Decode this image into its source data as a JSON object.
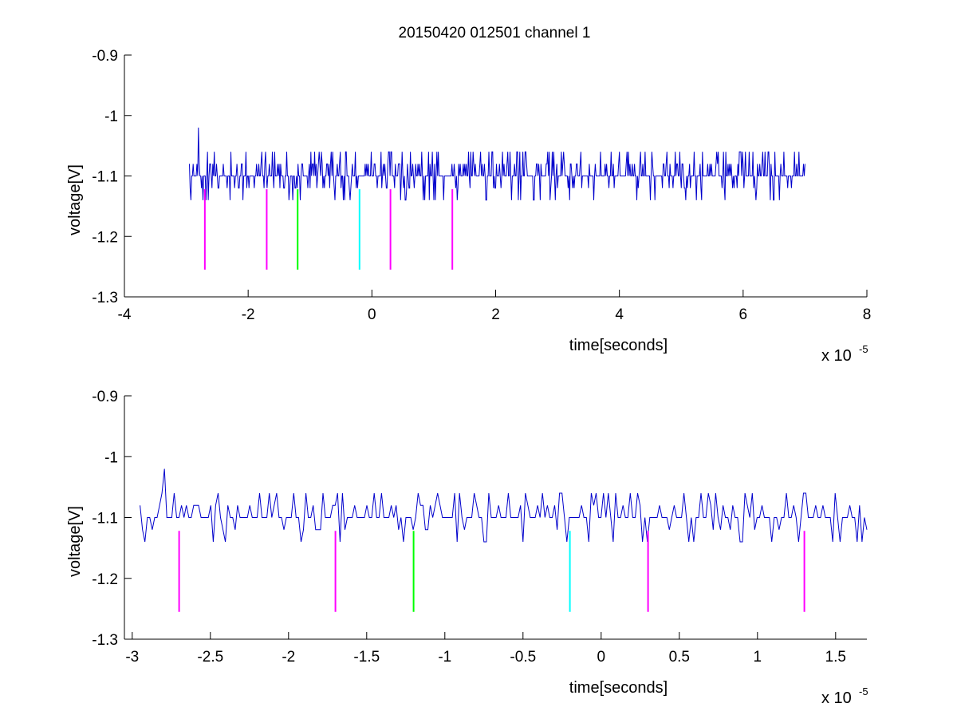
{
  "figure": {
    "title": "20150420 012501 channel 1"
  },
  "chart_data": [
    {
      "type": "line",
      "title": "20150420 012501 channel 1",
      "xlabel": "time[seconds]",
      "ylabel": "voltage[V]",
      "x_multiplier_label": "x 10",
      "x_multiplier_exponent": "-5",
      "xlim": [
        -4,
        8
      ],
      "ylim": [
        -1.3,
        -0.9
      ],
      "xticks": [
        -4,
        -2,
        0,
        2,
        4,
        6,
        8
      ],
      "xtick_labels": [
        "-4",
        "-2",
        "0",
        "2",
        "4",
        "6",
        "8"
      ],
      "yticks": [
        -0.9,
        -1,
        -1.1,
        -1.2,
        -1.3
      ],
      "ytick_labels": [
        "-0.9",
        "-1",
        "-1.1",
        "-1.2",
        "-1.3"
      ],
      "signal": {
        "color": "#0000cc",
        "x_range": [
          -2.95,
          7.0
        ],
        "baseline": -1.1,
        "levels": [
          -1.14,
          -1.12,
          -1.1,
          -1.08,
          -1.06
        ],
        "peak": {
          "x": -2.8,
          "y": -1.02
        }
      },
      "markers": [
        {
          "x": -2.7,
          "y_range": [
            -1.255,
            -1.122
          ],
          "color": "#ff00ff"
        },
        {
          "x": -1.7,
          "y_range": [
            -1.255,
            -1.122
          ],
          "color": "#ff00ff"
        },
        {
          "x": -1.2,
          "y_range": [
            -1.255,
            -1.122
          ],
          "color": "#00ff00"
        },
        {
          "x": -0.2,
          "y_range": [
            -1.255,
            -1.122
          ],
          "color": "#00ffff"
        },
        {
          "x": 0.3,
          "y_range": [
            -1.255,
            -1.122
          ],
          "color": "#ff00ff"
        },
        {
          "x": 1.3,
          "y_range": [
            -1.255,
            -1.122
          ],
          "color": "#ff00ff"
        }
      ],
      "grid": false
    },
    {
      "type": "line",
      "xlabel": "time[seconds]",
      "ylabel": "voltage[V]",
      "x_multiplier_label": "x 10",
      "x_multiplier_exponent": "-5",
      "xlim": [
        -3.05,
        1.7
      ],
      "ylim": [
        -1.3,
        -0.9
      ],
      "xticks": [
        -3,
        -2.5,
        -2,
        -1.5,
        -1,
        -0.5,
        0,
        0.5,
        1,
        1.5
      ],
      "xtick_labels": [
        "-3",
        "-2.5",
        "-2",
        "-1.5",
        "-1",
        "-0.5",
        "0",
        "0.5",
        "1",
        "1.5"
      ],
      "yticks": [
        -0.9,
        -1,
        -1.1,
        -1.2,
        -1.3
      ],
      "ytick_labels": [
        "-0.9",
        "-1",
        "-1.1",
        "-1.2",
        "-1.3"
      ],
      "signal": {
        "color": "#0000cc",
        "x_range": [
          -2.95,
          1.7
        ],
        "baseline": -1.1,
        "levels": [
          -1.14,
          -1.12,
          -1.1,
          -1.08,
          -1.06
        ],
        "peak": {
          "x": -2.8,
          "y": -1.02
        }
      },
      "markers": [
        {
          "x": -2.7,
          "y_range": [
            -1.255,
            -1.122
          ],
          "color": "#ff00ff"
        },
        {
          "x": -1.7,
          "y_range": [
            -1.255,
            -1.122
          ],
          "color": "#ff00ff"
        },
        {
          "x": -1.2,
          "y_range": [
            -1.255,
            -1.122
          ],
          "color": "#00ff00"
        },
        {
          "x": -0.2,
          "y_range": [
            -1.255,
            -1.122
          ],
          "color": "#00ffff"
        },
        {
          "x": 0.3,
          "y_range": [
            -1.255,
            -1.122
          ],
          "color": "#ff00ff"
        },
        {
          "x": 1.3,
          "y_range": [
            -1.255,
            -1.122
          ],
          "color": "#ff00ff"
        }
      ],
      "grid": false
    }
  ]
}
